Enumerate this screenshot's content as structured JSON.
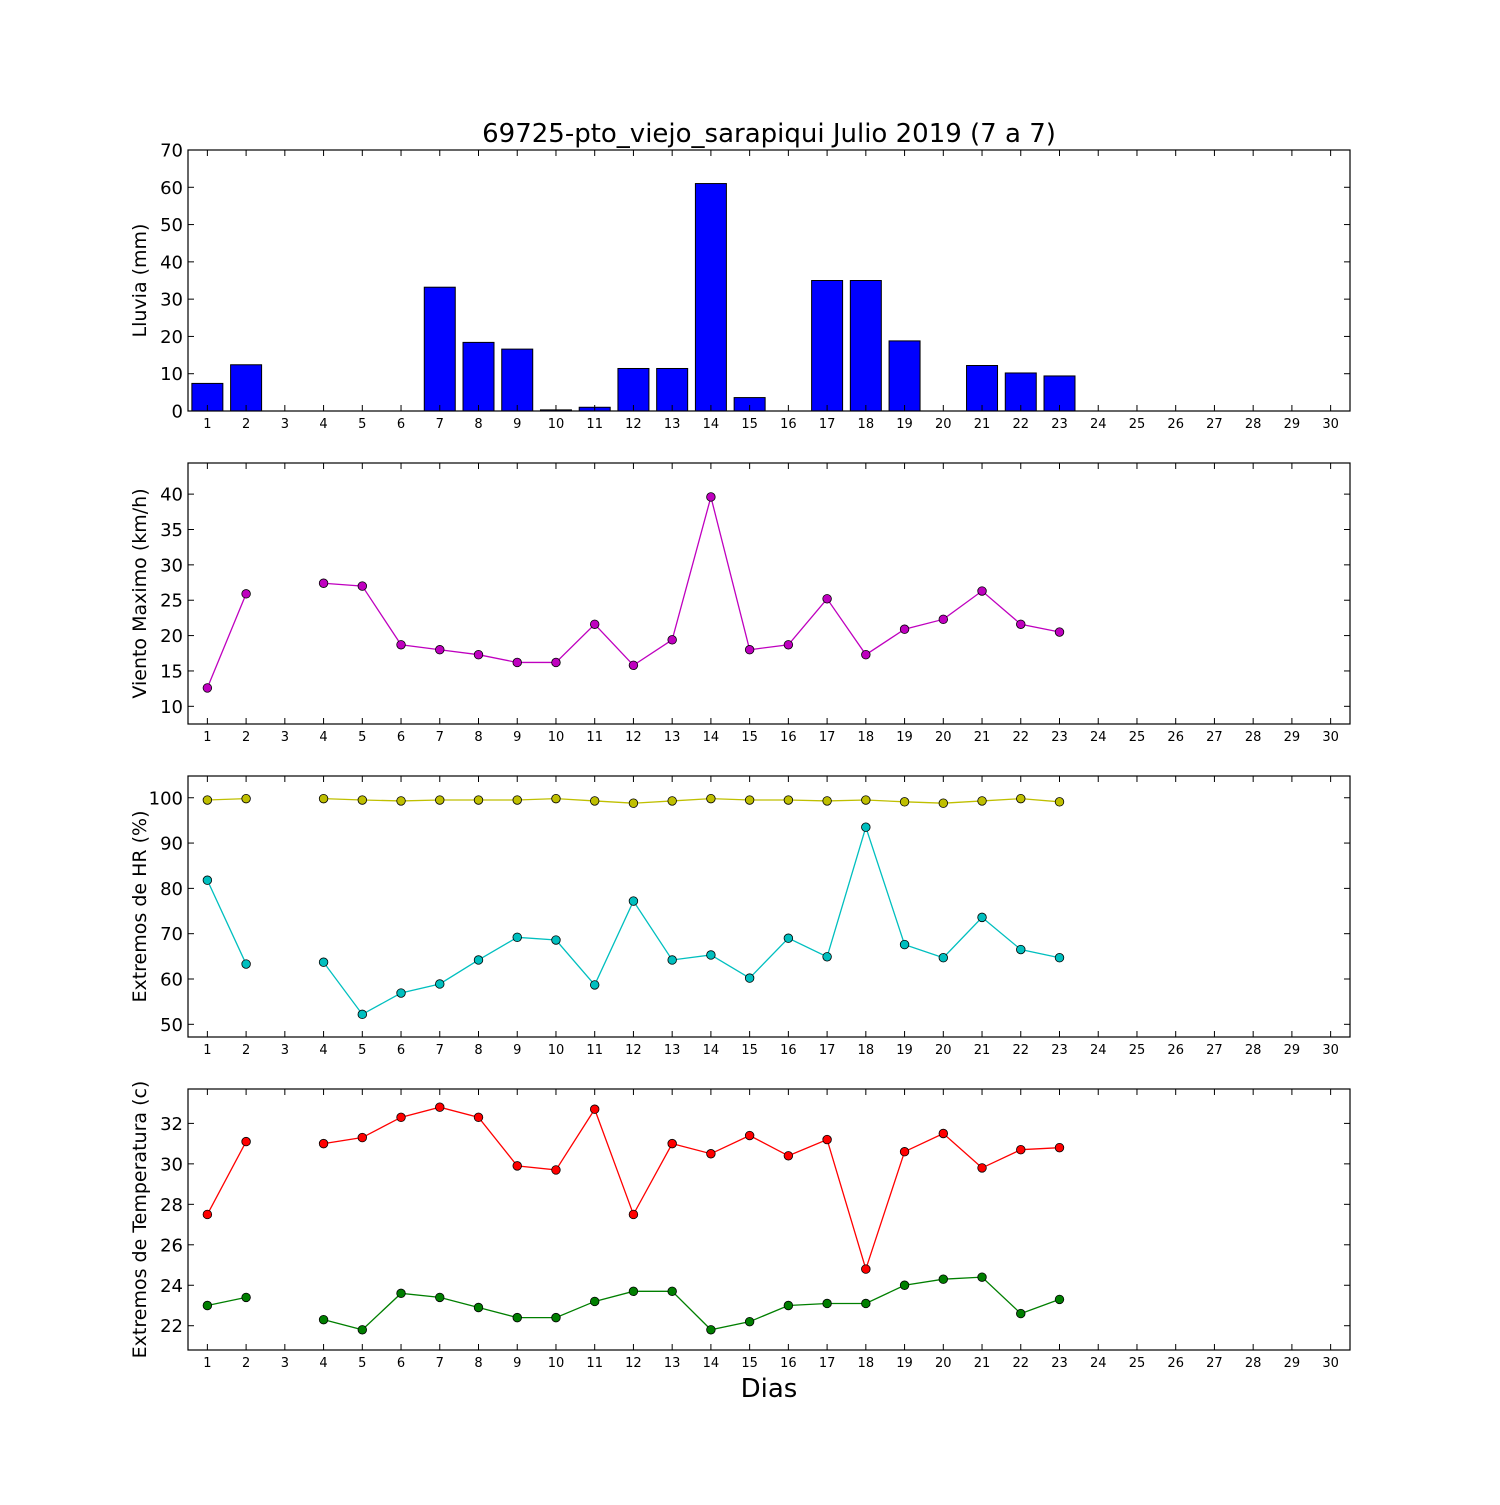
{
  "title": "69725-pto_viejo_sarapiqui Julio 2019  (7 a 7)",
  "xlabel": "Dias",
  "chart_data": [
    {
      "type": "bar",
      "ylabel": "Lluvia (mm)",
      "ylim": [
        0,
        70
      ],
      "yticks": [
        0,
        10,
        20,
        30,
        40,
        50,
        60,
        70
      ],
      "xlim": [
        0.5,
        30.5
      ],
      "x": [
        1,
        2,
        3,
        4,
        5,
        6,
        7,
        8,
        9,
        10,
        11,
        12,
        13,
        14,
        15,
        16,
        17,
        18,
        19,
        20,
        21,
        22,
        23,
        24,
        25,
        26,
        27,
        28,
        29,
        30
      ],
      "series": [
        {
          "color": "#0000ff",
          "values": [
            7.4,
            12.4,
            0,
            0,
            0,
            0,
            33.2,
            18.4,
            16.6,
            0.3,
            1.0,
            11.4,
            11.4,
            61.0,
            3.6,
            0,
            35.0,
            35.0,
            18.8,
            0,
            12.2,
            10.2,
            9.4,
            null,
            null,
            null,
            null,
            null,
            null,
            null
          ]
        }
      ]
    },
    {
      "type": "line",
      "ylabel": "Viento Maximo (km/h)",
      "ylim": [
        7.5,
        44.4
      ],
      "yticks": [
        10,
        15,
        20,
        25,
        30,
        35,
        40
      ],
      "xlim": [
        0.5,
        30.5
      ],
      "x": [
        1,
        2,
        3,
        4,
        5,
        6,
        7,
        8,
        9,
        10,
        11,
        12,
        13,
        14,
        15,
        16,
        17,
        18,
        19,
        20,
        21,
        22,
        23,
        24,
        25,
        26,
        27,
        28,
        29,
        30
      ],
      "series": [
        {
          "color": "#bf00bf",
          "values": [
            12.6,
            25.9,
            null,
            27.4,
            27.0,
            18.7,
            18.0,
            17.3,
            16.2,
            16.2,
            21.6,
            15.8,
            19.4,
            39.6,
            18.0,
            18.7,
            25.2,
            17.3,
            20.9,
            22.3,
            26.3,
            21.6,
            20.5,
            null,
            null,
            null,
            null,
            null,
            null,
            null
          ]
        }
      ]
    },
    {
      "type": "line",
      "ylabel": "Extremos de HR (%)",
      "ylim": [
        47.2,
        104.8
      ],
      "yticks": [
        50,
        60,
        70,
        80,
        90,
        100
      ],
      "xlim": [
        0.5,
        30.5
      ],
      "x": [
        1,
        2,
        3,
        4,
        5,
        6,
        7,
        8,
        9,
        10,
        11,
        12,
        13,
        14,
        15,
        16,
        17,
        18,
        19,
        20,
        21,
        22,
        23,
        24,
        25,
        26,
        27,
        28,
        29,
        30
      ],
      "series": [
        {
          "color": "#bfbf00",
          "values": [
            99.5,
            99.8,
            null,
            99.8,
            99.5,
            99.3,
            99.5,
            99.5,
            99.5,
            99.8,
            99.3,
            98.8,
            99.3,
            99.8,
            99.5,
            99.5,
            99.3,
            99.5,
            99.1,
            98.8,
            99.3,
            99.8,
            99.1,
            null,
            null,
            null,
            null,
            null,
            null,
            null
          ]
        },
        {
          "color": "#00bfbf",
          "values": [
            81.8,
            63.3,
            null,
            63.7,
            52.2,
            56.9,
            58.9,
            64.2,
            69.2,
            68.6,
            58.7,
            77.2,
            64.2,
            65.3,
            60.2,
            69.0,
            64.9,
            93.5,
            67.6,
            64.7,
            73.6,
            66.5,
            64.7,
            null,
            null,
            null,
            null,
            null,
            null,
            null
          ]
        }
      ]
    },
    {
      "type": "line",
      "ylabel": "Extremos de Temperatura (c)",
      "ylim": [
        20.8,
        33.7
      ],
      "yticks": [
        22,
        24,
        26,
        28,
        30,
        32
      ],
      "xlim": [
        0.5,
        30.5
      ],
      "x": [
        1,
        2,
        3,
        4,
        5,
        6,
        7,
        8,
        9,
        10,
        11,
        12,
        13,
        14,
        15,
        16,
        17,
        18,
        19,
        20,
        21,
        22,
        23,
        24,
        25,
        26,
        27,
        28,
        29,
        30
      ],
      "series": [
        {
          "color": "#ff0000",
          "values": [
            27.5,
            31.1,
            null,
            31.0,
            31.3,
            32.3,
            32.8,
            32.3,
            29.9,
            29.7,
            32.7,
            27.5,
            31.0,
            30.5,
            31.4,
            30.4,
            31.2,
            24.8,
            30.6,
            31.5,
            29.8,
            30.7,
            30.8,
            null,
            null,
            null,
            null,
            null,
            null,
            null
          ]
        },
        {
          "color": "#007f00",
          "values": [
            23.0,
            23.4,
            null,
            22.3,
            21.8,
            23.6,
            23.4,
            22.9,
            22.4,
            22.4,
            23.2,
            23.7,
            23.7,
            21.8,
            22.2,
            23.0,
            23.1,
            23.1,
            24.0,
            24.3,
            24.4,
            22.6,
            23.3,
            null,
            null,
            null,
            null,
            null,
            null,
            null
          ]
        }
      ]
    }
  ]
}
